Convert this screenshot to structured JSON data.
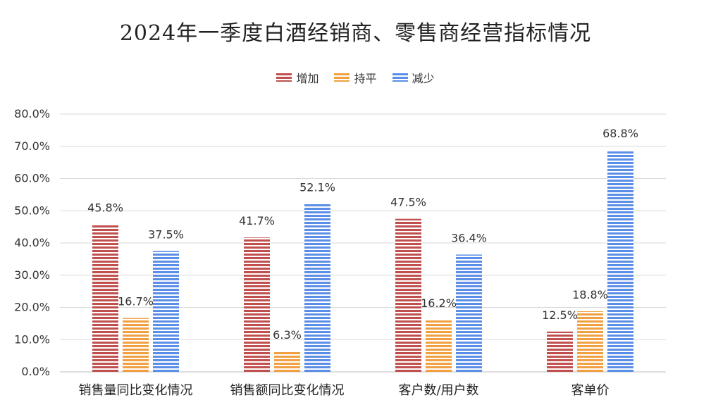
{
  "chart_data": {
    "type": "bar",
    "title": "2024年一季度白酒经销商、零售商经营指标情况",
    "categories": [
      "销售量同比变化情况",
      "销售额同比变化情况",
      "客户数/用户数",
      "客单价"
    ],
    "series": [
      {
        "name": "增加",
        "color": "#c0504d",
        "values": [
          45.8,
          41.7,
          47.5,
          12.5
        ]
      },
      {
        "name": "持平",
        "color": "#f0a040",
        "values": [
          16.7,
          6.3,
          16.2,
          18.8
        ]
      },
      {
        "name": "减少",
        "color": "#5b8ee6",
        "values": [
          37.5,
          52.1,
          36.4,
          68.8
        ]
      }
    ],
    "ylim": [
      0,
      80
    ],
    "yticks": [
      "0.0%",
      "10.0%",
      "20.0%",
      "30.0%",
      "40.0%",
      "50.0%",
      "60.0%",
      "70.0%",
      "80.0%"
    ],
    "value_labels": [
      [
        "45.8%",
        "41.7%",
        "47.5%",
        "12.5%"
      ],
      [
        "16.7%",
        "6.3%",
        "16.2%",
        "18.8%"
      ],
      [
        "37.5%",
        "52.1%",
        "36.4%",
        "68.8%"
      ]
    ],
    "xlabel": "",
    "ylabel": "",
    "grid": true,
    "legend_position": "top"
  }
}
